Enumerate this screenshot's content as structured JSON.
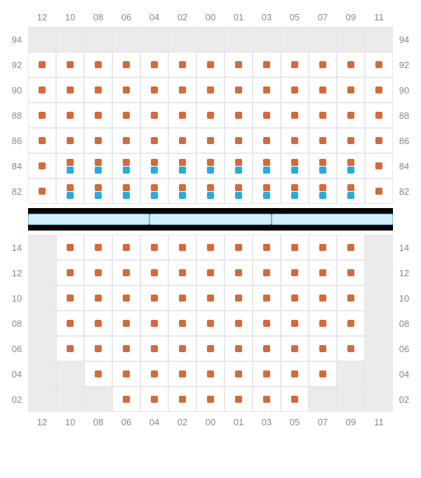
{
  "colors": {
    "seat_orange": "#d46a3a",
    "seat_blue": "#29a9e0",
    "empty_bg": "#ebebeb",
    "grid_line": "#e8e8e8",
    "label": "#888888",
    "stage_bg": "#cfeefc",
    "stage_border": "#7fb8d4",
    "divider": "#000000"
  },
  "columns": [
    "12",
    "10",
    "08",
    "06",
    "04",
    "02",
    "00",
    "01",
    "03",
    "05",
    "07",
    "09",
    "11"
  ],
  "upper": {
    "row_labels": [
      "94",
      "92",
      "90",
      "88",
      "86",
      "84",
      "82"
    ],
    "rows": [
      [
        "E",
        "E",
        "E",
        "E",
        "E",
        "E",
        "E",
        "E",
        "E",
        "E",
        "E",
        "E",
        "E"
      ],
      [
        "O",
        "O",
        "O",
        "O",
        "O",
        "O",
        "O",
        "O",
        "O",
        "O",
        "O",
        "O",
        "O"
      ],
      [
        "O",
        "O",
        "O",
        "O",
        "O",
        "O",
        "O",
        "O",
        "O",
        "O",
        "O",
        "O",
        "O"
      ],
      [
        "O",
        "O",
        "O",
        "O",
        "O",
        "O",
        "O",
        "O",
        "O",
        "O",
        "O",
        "O",
        "O"
      ],
      [
        "O",
        "O",
        "O",
        "O",
        "O",
        "O",
        "O",
        "O",
        "O",
        "O",
        "O",
        "O",
        "O"
      ],
      [
        "O",
        "OB",
        "OB",
        "OB",
        "OB",
        "OB",
        "OB",
        "OB",
        "OB",
        "OB",
        "OB",
        "OB",
        "O"
      ],
      [
        "O",
        "OB",
        "OB",
        "OB",
        "OB",
        "OB",
        "OB",
        "OB",
        "OB",
        "OB",
        "OB",
        "OB",
        "O"
      ]
    ]
  },
  "stage_segments": 3,
  "lower": {
    "row_labels": [
      "14",
      "12",
      "10",
      "08",
      "06",
      "04",
      "02"
    ],
    "rows": [
      [
        "E",
        "O",
        "O",
        "O",
        "O",
        "O",
        "O",
        "O",
        "O",
        "O",
        "O",
        "O",
        "E"
      ],
      [
        "E",
        "O",
        "O",
        "O",
        "O",
        "O",
        "O",
        "O",
        "O",
        "O",
        "O",
        "O",
        "E"
      ],
      [
        "E",
        "O",
        "O",
        "O",
        "O",
        "O",
        "O",
        "O",
        "O",
        "O",
        "O",
        "O",
        "E"
      ],
      [
        "E",
        "O",
        "O",
        "O",
        "O",
        "O",
        "O",
        "O",
        "O",
        "O",
        "O",
        "O",
        "E"
      ],
      [
        "E",
        "O",
        "O",
        "O",
        "O",
        "O",
        "O",
        "O",
        "O",
        "O",
        "O",
        "O",
        "E"
      ],
      [
        "E",
        "E",
        "O",
        "O",
        "O",
        "O",
        "O",
        "O",
        "O",
        "O",
        "O",
        "E",
        "E"
      ],
      [
        "E",
        "E",
        "E",
        "O",
        "O",
        "O",
        "O",
        "O",
        "O",
        "O",
        "E",
        "E",
        "E"
      ]
    ]
  }
}
